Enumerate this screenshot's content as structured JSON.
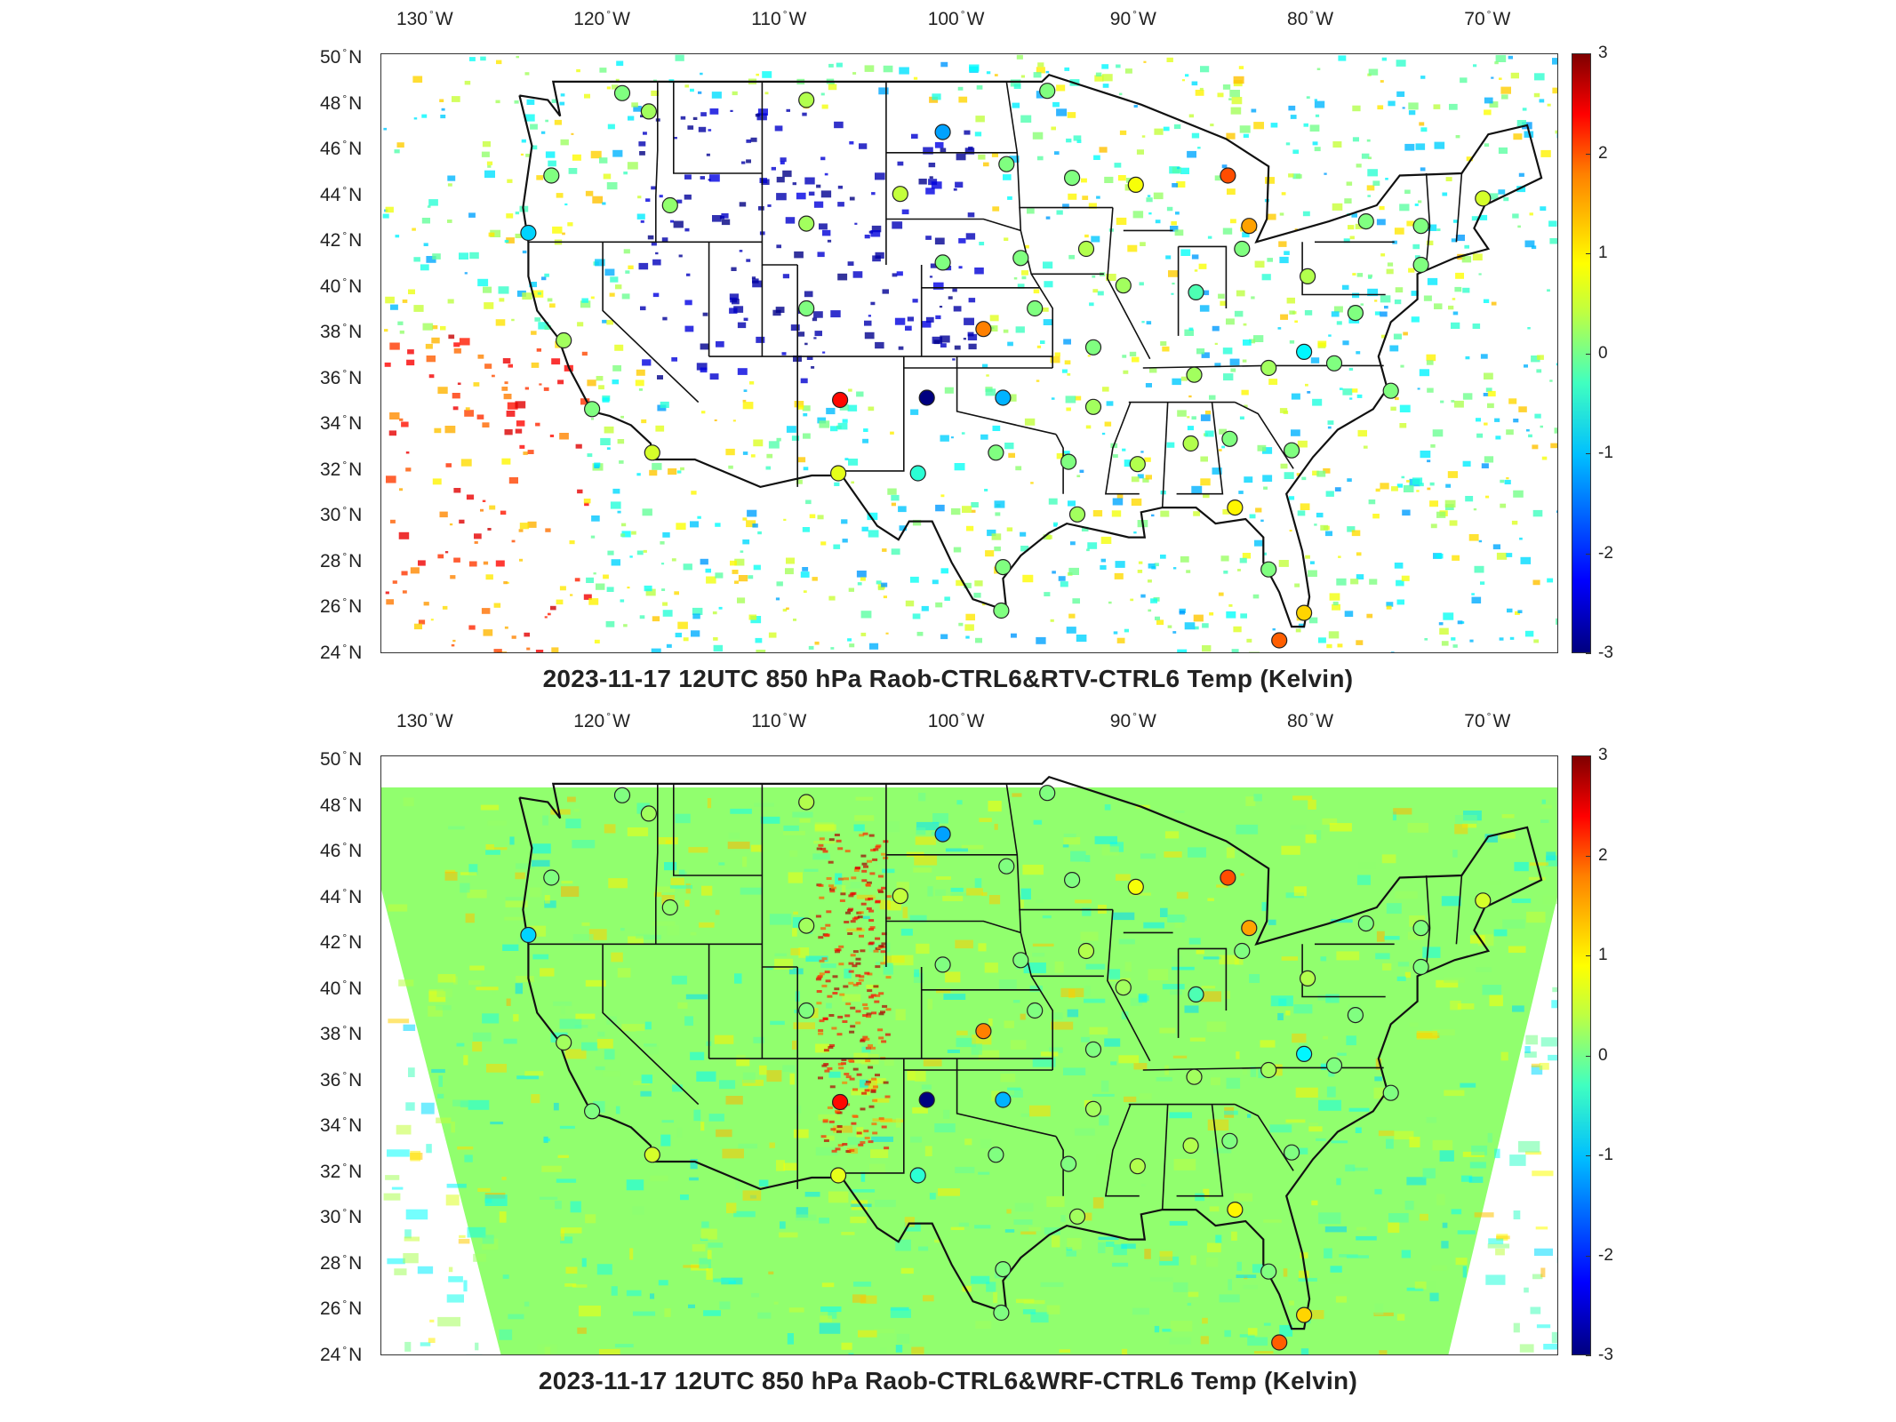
{
  "panels": [
    {
      "title": "2023-11-17 12UTC 850 hPa Raob-CTRL6&RTV-CTRL6 Temp (Kelvin)",
      "lon_labels": [
        "130",
        "120",
        "110",
        "100",
        "90",
        "80",
        "70"
      ],
      "lon_suffix": "W",
      "lat_labels": [
        "50",
        "48",
        "46",
        "44",
        "42",
        "40",
        "38",
        "36",
        "34",
        "32",
        "30",
        "28",
        "26",
        "24"
      ],
      "lat_suffix": "N",
      "colorbar_ticks": [
        "3",
        "2",
        "1",
        "0",
        "-1",
        "-2",
        "-3"
      ],
      "field_coverage": "scattered"
    },
    {
      "title": "2023-11-17 12UTC 850 hPa Raob-CTRL6&WRF-CTRL6 Temp (Kelvin)",
      "lon_labels": [
        "130",
        "120",
        "110",
        "100",
        "90",
        "80",
        "70"
      ],
      "lon_suffix": "W",
      "lat_labels": [
        "50",
        "48",
        "46",
        "44",
        "42",
        "40",
        "38",
        "36",
        "34",
        "32",
        "30",
        "28",
        "26",
        "24"
      ],
      "lat_suffix": "N",
      "colorbar_ticks": [
        "3",
        "2",
        "1",
        "0",
        "-1",
        "-2",
        "-3"
      ],
      "field_coverage": "full-domain"
    }
  ],
  "colors": {
    "-3": "#00007f",
    "-2": "#0000ff",
    "-1": "#00bfff",
    "0": "#40ffc0",
    "1": "#ffff00",
    "2": "#ff8000",
    "3": "#7f0000"
  },
  "raob_stations": [
    {
      "lon": -117.4,
      "lat": 47.7,
      "value": 0.2
    },
    {
      "lon": -108.5,
      "lat": 48.2,
      "value": 0.3
    },
    {
      "lon": -100.8,
      "lat": 46.8,
      "value": -1.3
    },
    {
      "lon": -122.9,
      "lat": 44.9,
      "value": 0.0
    },
    {
      "lon": -116.2,
      "lat": 43.6,
      "value": 0.1
    },
    {
      "lon": -108.5,
      "lat": 42.8,
      "value": 0.2
    },
    {
      "lon": -103.2,
      "lat": 44.1,
      "value": 0.4
    },
    {
      "lon": -124.2,
      "lat": 42.4,
      "value": -1.0
    },
    {
      "lon": -97.2,
      "lat": 45.4,
      "value": 0.0
    },
    {
      "lon": -93.5,
      "lat": 44.8,
      "value": 0.0
    },
    {
      "lon": -89.9,
      "lat": 44.5,
      "value": 0.7
    },
    {
      "lon": -84.7,
      "lat": 44.9,
      "value": 1.8
    },
    {
      "lon": -83.5,
      "lat": 42.7,
      "value": 1.3
    },
    {
      "lon": -92.7,
      "lat": 41.7,
      "value": 0.3
    },
    {
      "lon": -96.4,
      "lat": 41.3,
      "value": 0.0
    },
    {
      "lon": -100.8,
      "lat": 41.1,
      "value": 0.0
    },
    {
      "lon": -108.5,
      "lat": 39.1,
      "value": 0.0
    },
    {
      "lon": -98.5,
      "lat": 38.2,
      "value": 1.5
    },
    {
      "lon": -95.6,
      "lat": 39.1,
      "value": 0.0
    },
    {
      "lon": -90.6,
      "lat": 40.1,
      "value": 0.2
    },
    {
      "lon": -86.5,
      "lat": 39.8,
      "value": -0.3
    },
    {
      "lon": -83.9,
      "lat": 41.7,
      "value": 0.0
    },
    {
      "lon": -80.2,
      "lat": 40.5,
      "value": 0.3
    },
    {
      "lon": -76.9,
      "lat": 42.9,
      "value": 0.0
    },
    {
      "lon": -73.8,
      "lat": 42.7,
      "value": 0.0
    },
    {
      "lon": -70.3,
      "lat": 43.9,
      "value": 0.5
    },
    {
      "lon": -73.8,
      "lat": 41.0,
      "value": 0.0
    },
    {
      "lon": -77.5,
      "lat": 38.9,
      "value": 0.0
    },
    {
      "lon": -80.4,
      "lat": 37.2,
      "value": -0.8
    },
    {
      "lon": -78.7,
      "lat": 36.7,
      "value": 0.0
    },
    {
      "lon": -75.5,
      "lat": 35.5,
      "value": 0.0
    },
    {
      "lon": -86.6,
      "lat": 36.2,
      "value": 0.2
    },
    {
      "lon": -82.4,
      "lat": 36.5,
      "value": 0.2
    },
    {
      "lon": -92.3,
      "lat": 37.4,
      "value": 0.0
    },
    {
      "lon": -92.3,
      "lat": 34.8,
      "value": 0.2
    },
    {
      "lon": -106.6,
      "lat": 35.1,
      "value": 2.2
    },
    {
      "lon": -101.7,
      "lat": 35.2,
      "value": -3.0
    },
    {
      "lon": -97.4,
      "lat": 35.2,
      "value": -1.2
    },
    {
      "lon": -89.8,
      "lat": 32.3,
      "value": 0.3
    },
    {
      "lon": -86.8,
      "lat": 33.2,
      "value": 0.3
    },
    {
      "lon": -84.6,
      "lat": 33.4,
      "value": 0.0
    },
    {
      "lon": -81.1,
      "lat": 32.9,
      "value": 0.0
    },
    {
      "lon": -106.7,
      "lat": 31.9,
      "value": 0.6
    },
    {
      "lon": -102.2,
      "lat": 31.9,
      "value": -0.5
    },
    {
      "lon": -97.8,
      "lat": 32.8,
      "value": 0.0
    },
    {
      "lon": -93.7,
      "lat": 32.4,
      "value": 0.0
    },
    {
      "lon": -93.2,
      "lat": 30.1,
      "value": 0.2
    },
    {
      "lon": -97.4,
      "lat": 27.8,
      "value": 0.0
    },
    {
      "lon": -97.5,
      "lat": 25.9,
      "value": 0.0
    },
    {
      "lon": -84.3,
      "lat": 30.4,
      "value": 0.8
    },
    {
      "lon": -82.4,
      "lat": 27.7,
      "value": 0.0
    },
    {
      "lon": -80.4,
      "lat": 25.8,
      "value": 1.0
    },
    {
      "lon": -81.8,
      "lat": 24.6,
      "value": 1.7
    },
    {
      "lon": -117.2,
      "lat": 32.8,
      "value": 0.5
    },
    {
      "lon": -120.6,
      "lat": 34.7,
      "value": 0.0
    },
    {
      "lon": -122.2,
      "lat": 37.7,
      "value": 0.2
    },
    {
      "lon": -118.9,
      "lat": 48.5,
      "value": 0.0
    },
    {
      "lon": -94.9,
      "lat": 48.6,
      "value": 0.0
    }
  ]
}
